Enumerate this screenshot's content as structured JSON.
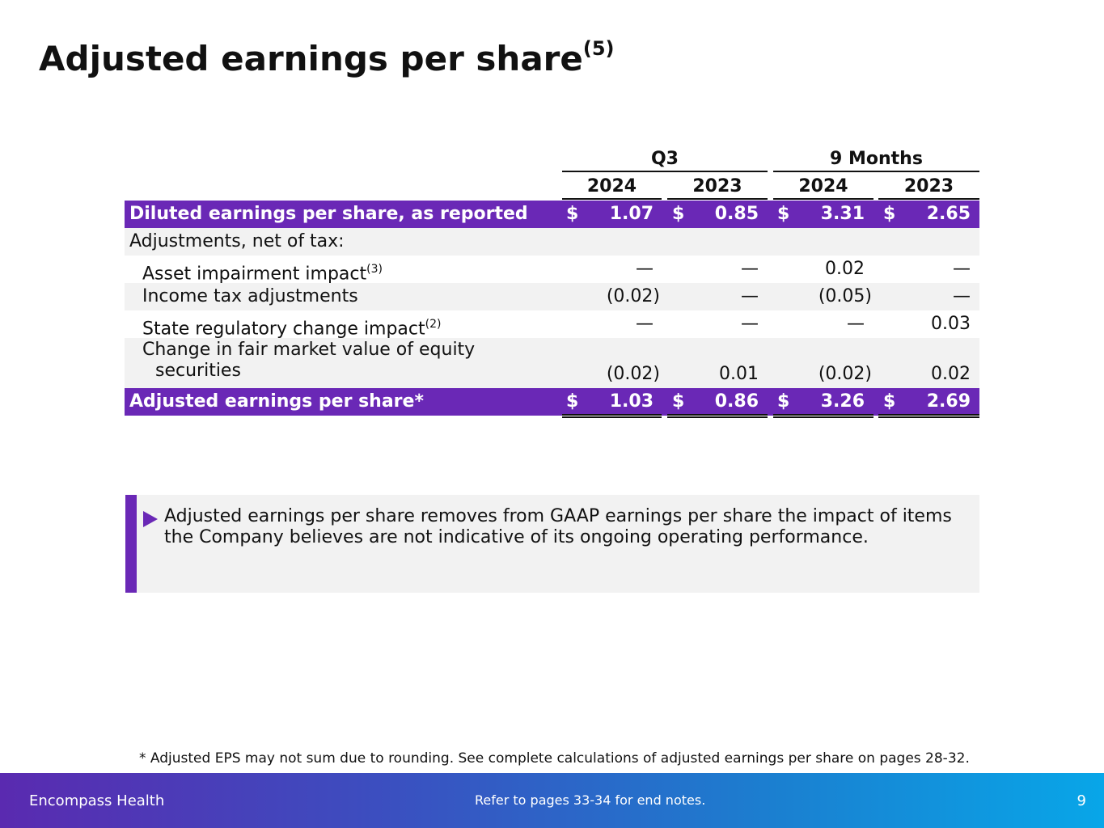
{
  "title": "Adjusted earnings per share",
  "title_note": "(5)",
  "table": {
    "groups": [
      "Q3",
      "9 Months"
    ],
    "years": [
      "2024",
      "2023",
      "2024",
      "2023"
    ],
    "currency": "$",
    "rows": [
      {
        "label": "Diluted earnings per share, as reported",
        "note": "",
        "values": [
          "1.07",
          "0.85",
          "3.31",
          "2.65"
        ]
      },
      {
        "label": "Adjustments, net of tax:",
        "note": "",
        "values": []
      },
      {
        "label": "Asset impairment impact",
        "note": "(3)",
        "values": [
          "—",
          "—",
          "0.02",
          "—"
        ]
      },
      {
        "label": "Income tax adjustments",
        "note": "",
        "values": [
          "(0.02)",
          "—",
          "(0.05)",
          "—"
        ]
      },
      {
        "label": "State regulatory change impact",
        "note": "(2)",
        "values": [
          "—",
          "—",
          "—",
          "0.03"
        ]
      },
      {
        "label_line1": "Change in fair market value of equity",
        "label_line2": "securities",
        "values": [
          "(0.02)",
          "0.01",
          "(0.02)",
          "0.02"
        ]
      },
      {
        "label": "Adjusted earnings per share*",
        "note": "",
        "values": [
          "1.03",
          "0.86",
          "3.26",
          "2.69"
        ]
      }
    ]
  },
  "callout": {
    "text": "Adjusted earnings per share removes from GAAP earnings per share the impact of items the Company believes are not indicative of its ongoing operating performance."
  },
  "footnote": "*  Adjusted EPS may not sum due to rounding. See complete calculations of adjusted earnings per share on pages 28-32.",
  "footer": {
    "brand": "Encompass Health",
    "reference": "Refer to pages 33-34 for end notes.",
    "page_number": "9"
  },
  "colors": {
    "accent": "#6a28b6",
    "row_alt": "#f2f2f2"
  }
}
